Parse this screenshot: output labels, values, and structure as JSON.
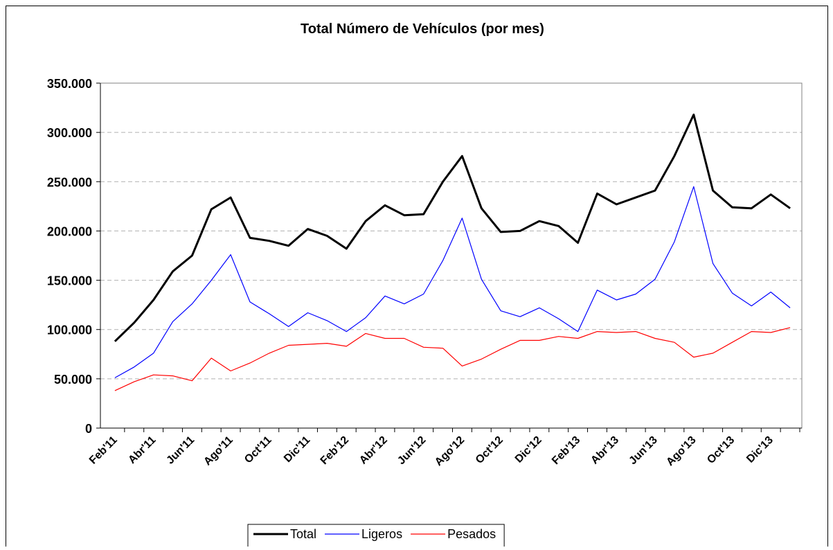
{
  "chart_data": {
    "type": "line",
    "title": "Total Número de Vehículos (por mes)",
    "categories": [
      "Feb'11",
      null,
      "Abr'11",
      null,
      "Jun'11",
      null,
      "Ago'11",
      null,
      "Oct'11",
      null,
      "Dic'11",
      null,
      "Feb'12",
      null,
      "Abr'12",
      null,
      "Jun'12",
      null,
      "Ago'12",
      null,
      "Oct'12",
      null,
      "Dic'12",
      null,
      "Feb'13",
      null,
      "Abr'13",
      null,
      "Jun'13",
      null,
      "Ago'13",
      null,
      "Oct'13",
      null,
      "Dic'13",
      null
    ],
    "series": [
      {
        "name": "Total",
        "color": "#000000",
        "width": 3,
        "values": [
          88000,
          107000,
          130000,
          159000,
          175000,
          222000,
          234000,
          193000,
          190000,
          185000,
          202000,
          195000,
          182000,
          210000,
          226000,
          216000,
          217000,
          250000,
          276000,
          223000,
          199000,
          200000,
          210000,
          205000,
          188000,
          238000,
          227000,
          234000,
          241000,
          276000,
          318000,
          241000,
          224000,
          223000,
          237000,
          223000
        ]
      },
      {
        "name": "Ligeros",
        "color": "#0000ff",
        "width": 1.2,
        "values": [
          51000,
          62000,
          76000,
          108000,
          126000,
          150000,
          176000,
          128000,
          116000,
          103000,
          117000,
          109000,
          98000,
          112000,
          134000,
          126000,
          136000,
          170000,
          213000,
          151000,
          119000,
          113000,
          122000,
          111000,
          98000,
          140000,
          130000,
          136000,
          151000,
          189000,
          245000,
          167000,
          137000,
          124000,
          138000,
          122000
        ]
      },
      {
        "name": "Pesados",
        "color": "#ff0000",
        "width": 1.2,
        "values": [
          38000,
          47000,
          54000,
          53000,
          48000,
          71000,
          58000,
          66000,
          76000,
          84000,
          85000,
          86000,
          83000,
          96000,
          91000,
          91000,
          82000,
          81000,
          63000,
          70000,
          80000,
          89000,
          89000,
          93000,
          91000,
          98000,
          97000,
          98000,
          91000,
          87000,
          72000,
          76000,
          87000,
          98000,
          97000,
          102000
        ]
      }
    ],
    "ylim": [
      0,
      350000
    ],
    "yticks": [
      0,
      {
        "value": 50000,
        "label": "50.000"
      },
      {
        "value": 100000,
        "label": "100.000"
      },
      {
        "value": 150000,
        "label": "150.000"
      },
      {
        "value": 200000,
        "label": "200.000"
      },
      {
        "value": 250000,
        "label": "250.000"
      },
      {
        "value": 300000,
        "label": "300.000"
      },
      {
        "value": 350000,
        "label": "350.000"
      }
    ],
    "grid": true,
    "legend": "bottom"
  }
}
